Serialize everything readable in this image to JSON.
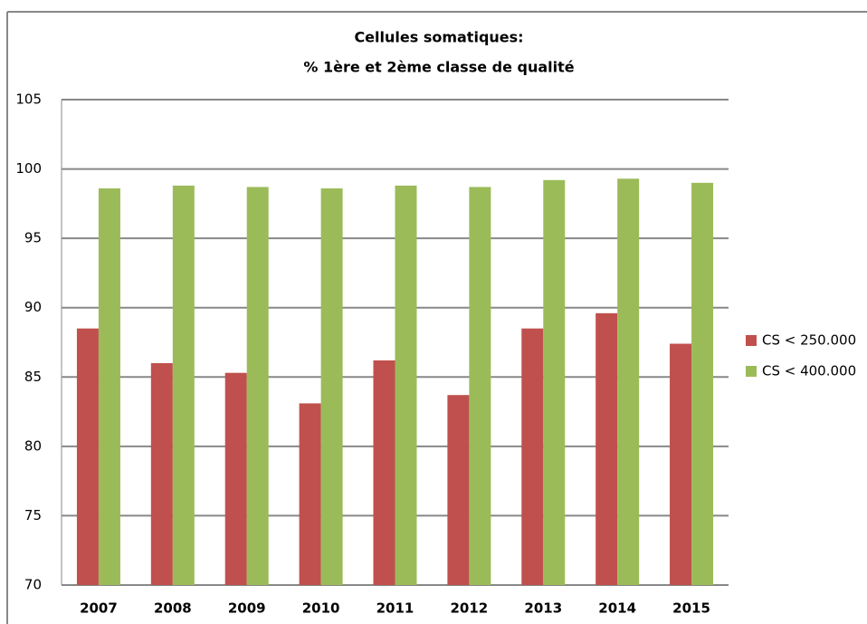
{
  "chart_data": {
    "type": "bar",
    "title": [
      "Cellules somatiques:",
      "% 1ère et 2ème classe de qualité"
    ],
    "categories": [
      "2007",
      "2008",
      "2009",
      "2010",
      "2011",
      "2012",
      "2013",
      "2014",
      "2015"
    ],
    "series": [
      {
        "name": "CS < 250.000",
        "color": "#c0504d",
        "values": [
          88.5,
          86.0,
          85.3,
          83.1,
          86.2,
          83.7,
          88.5,
          89.6,
          87.4
        ]
      },
      {
        "name": "CS < 400.000",
        "color": "#9bbb59",
        "values": [
          98.6,
          98.8,
          98.7,
          98.6,
          98.8,
          98.7,
          99.2,
          99.3,
          99.0
        ]
      }
    ],
    "ylim": [
      70,
      105
    ],
    "yticks": [
      70,
      75,
      80,
      85,
      90,
      95,
      100,
      105
    ],
    "grid": true,
    "legend": "right"
  }
}
